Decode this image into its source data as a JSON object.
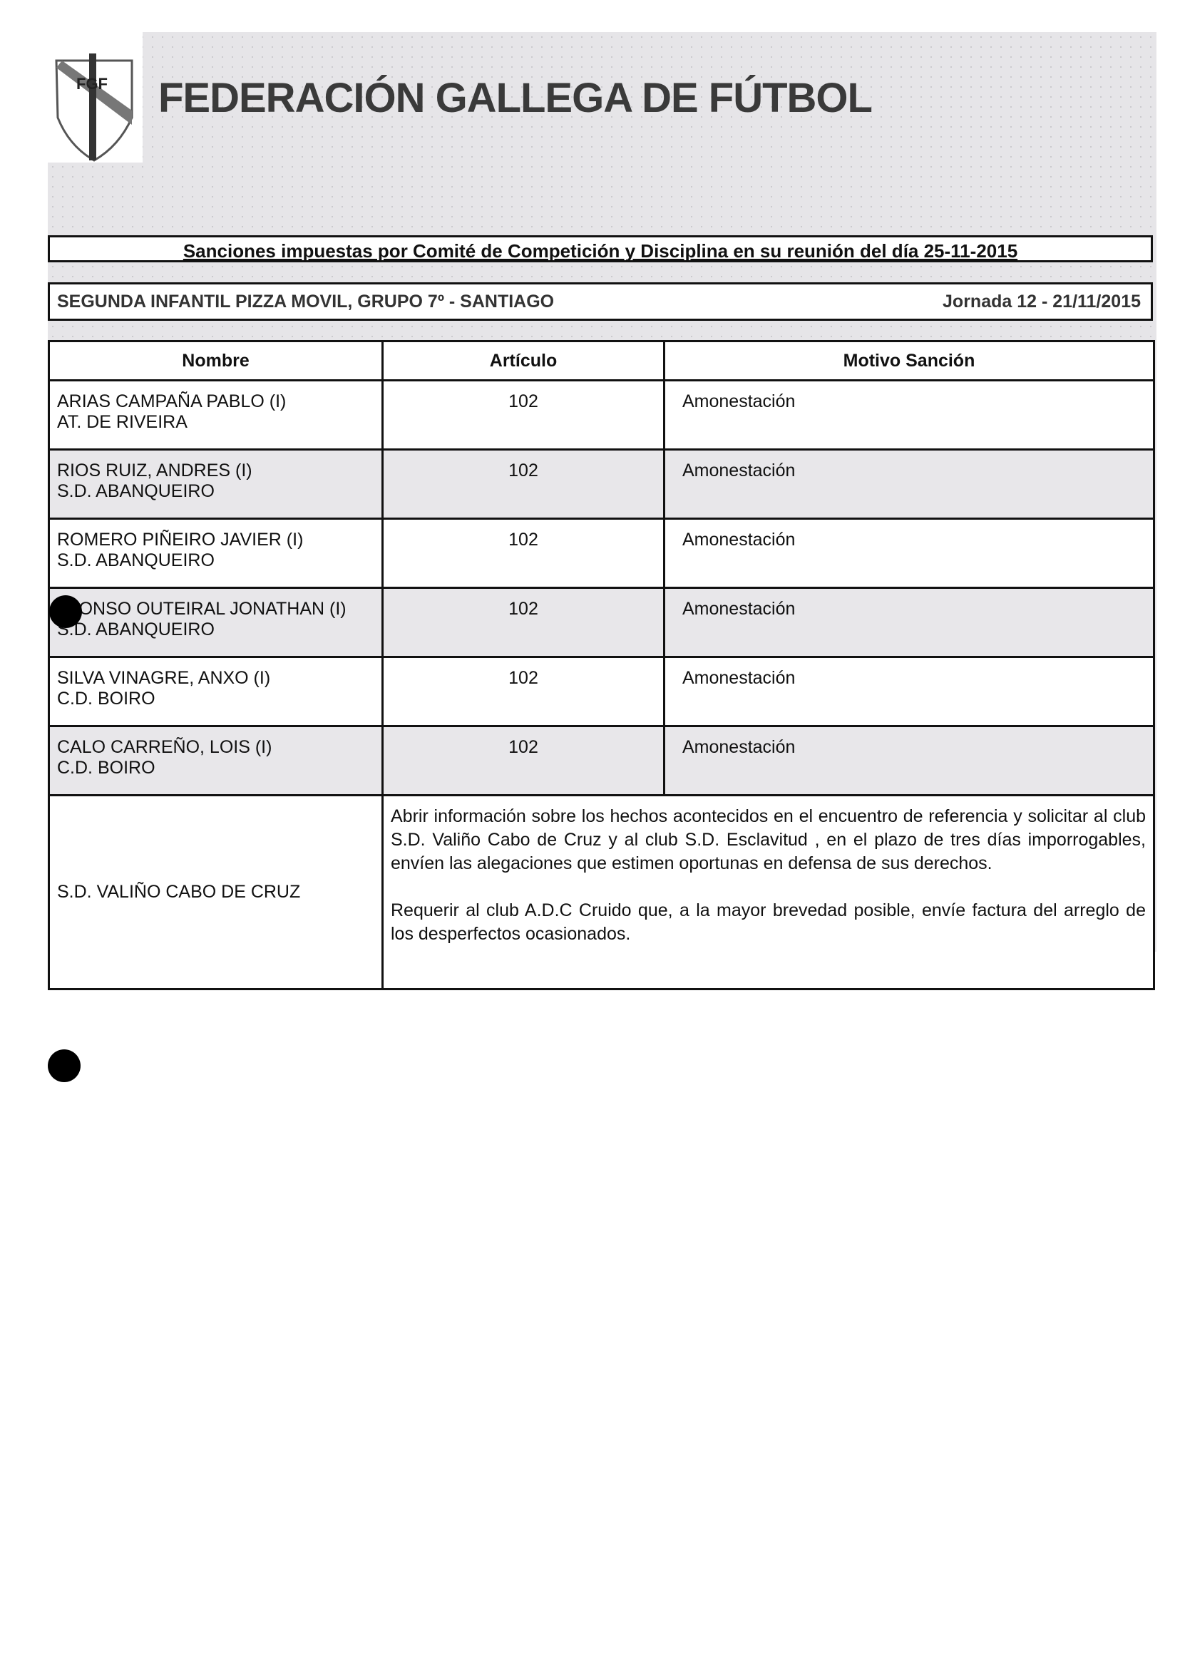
{
  "header": {
    "title": "FEDERACIÓN GALLEGA DE FÚTBOL",
    "logo_text": "FGF"
  },
  "heading": "Sanciones impuestas por Comité de Competición y Disciplina en su reunión del día 25-11-2015",
  "competition": {
    "name": "SEGUNDA INFANTIL PIZZA MOVIL,  GRUPO 7º - SANTIAGO",
    "matchday": "Jornada 12 - 21/11/2015"
  },
  "table": {
    "columns": [
      "Nombre",
      "Artículo",
      "Motivo Sanción"
    ],
    "rows": [
      {
        "name": "ARIAS CAMPAÑA PABLO (I)",
        "club": "AT. DE RIVEIRA",
        "article": "102",
        "reason": "Amonestación"
      },
      {
        "name": "RIOS RUIZ, ANDRES (I)",
        "club": "S.D. ABANQUEIRO",
        "article": "102",
        "reason": "Amonestación"
      },
      {
        "name": "ROMERO PIÑEIRO JAVIER (I)",
        "club": "S.D. ABANQUEIRO",
        "article": "102",
        "reason": "Amonestación"
      },
      {
        "name": "ALONSO OUTEIRAL JONATHAN (I)",
        "club": "S.D. ABANQUEIRO",
        "article": "102",
        "reason": "Amonestación"
      },
      {
        "name": "SILVA VINAGRE, ANXO (I)",
        "club": "C.D. BOIRO",
        "article": "102",
        "reason": "Amonestación"
      },
      {
        "name": "CALO CARREÑO, LOIS (I)",
        "club": "C.D. BOIRO",
        "article": "102",
        "reason": "Amonestación"
      }
    ],
    "club_entry": {
      "name": "S.D. VALIÑO CABO DE CRUZ",
      "paragraphs": [
        "Abrir información sobre los hechos acontecidos en el encuentro de referencia y solicitar al club S.D. Valiño Cabo de Cruz y al club S.D. Esclavitud , en el plazo de tres días imporrogables, envíen las alegaciones que estimen oportunas en defensa de sus derechos.",
        "Requerir al club A.D.C Cruido que, a la mayor brevedad posible, envíe factura del arreglo de los desperfectos ocasionados."
      ]
    }
  }
}
